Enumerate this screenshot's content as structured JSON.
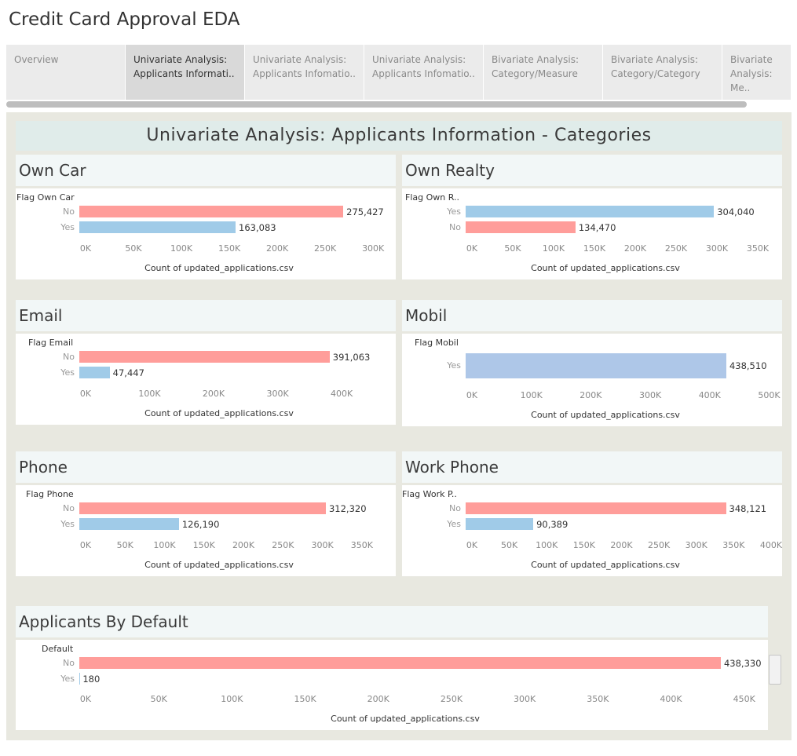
{
  "app_title": "Credit Card Approval EDA",
  "tabs": [
    {
      "label": "Overview",
      "active": false
    },
    {
      "label": "Univariate Analysis: Applicants Informati..",
      "active": true
    },
    {
      "label": "Univariate Analysis: Applicants Infomatio..",
      "active": false
    },
    {
      "label": "Univariate Analysis: Applicants Infomatio..",
      "active": false
    },
    {
      "label": "Bivariate Analysis: Category/Measure",
      "active": false
    },
    {
      "label": "Bivariate Analysis: Category/Category",
      "active": false
    },
    {
      "label": "Bivariate Analysis: Me..",
      "active": false
    }
  ],
  "dashboard_title": "Univariate Analysis: Applicants Information - Categories",
  "colors": {
    "no": "#ff9d9a",
    "yes": "#a0cbe8",
    "mobil": "#aec7e8"
  },
  "chart_data": [
    {
      "type": "bar",
      "title": "Own Car",
      "field_label": "Flag Own Car",
      "categories": [
        "No",
        "Yes"
      ],
      "values": [
        275427,
        163083
      ],
      "value_labels": [
        "275,427",
        "163,083"
      ],
      "xticks": [
        "0K",
        "50K",
        "100K",
        "150K",
        "200K",
        "250K",
        "300K"
      ],
      "xlim": [
        0,
        340000
      ],
      "xlabel": "Count of updated_applications.csv"
    },
    {
      "type": "bar",
      "title": "Own Realty",
      "field_label": "Flag Own R..",
      "categories": [
        "Yes",
        "No"
      ],
      "values": [
        304040,
        134470
      ],
      "value_labels": [
        "304,040",
        "134,470"
      ],
      "xticks": [
        "0K",
        "50K",
        "100K",
        "150K",
        "200K",
        "250K",
        "300K",
        "350K"
      ],
      "xlim": [
        0,
        375000
      ],
      "xlabel": "Count of updated_applications.csv"
    },
    {
      "type": "bar",
      "title": "Email",
      "field_label": "Flag Email",
      "categories": [
        "No",
        "Yes"
      ],
      "values": [
        391063,
        47447
      ],
      "value_labels": [
        "391,063",
        "47,447"
      ],
      "xticks": [
        "0K",
        "100K",
        "200K",
        "300K",
        "400K"
      ],
      "xlim": [
        0,
        460000
      ],
      "xlabel": "Count of updated_applications.csv"
    },
    {
      "type": "bar",
      "title": "Mobil",
      "field_label": "Flag Mobil",
      "categories": [
        "Yes"
      ],
      "values": [
        438510
      ],
      "value_labels": [
        "438,510"
      ],
      "xticks": [
        "0K",
        "100K",
        "200K",
        "300K",
        "400K",
        "500K"
      ],
      "xlim": [
        0,
        535000
      ],
      "xlabel": "Count of updated_applications.csv"
    },
    {
      "type": "bar",
      "title": "Phone",
      "field_label": "Flag Phone",
      "categories": [
        "No",
        "Yes"
      ],
      "values": [
        312320,
        126190
      ],
      "value_labels": [
        "312,320",
        "126,190"
      ],
      "xticks": [
        "0K",
        "50K",
        "100K",
        "150K",
        "200K",
        "250K",
        "300K",
        "350K"
      ],
      "xlim": [
        0,
        378000
      ],
      "xlabel": "Count of updated_applications.csv"
    },
    {
      "type": "bar",
      "title": "Work Phone",
      "field_label": "Flag Work P..",
      "categories": [
        "No",
        "Yes"
      ],
      "values": [
        348121,
        90389
      ],
      "value_labels": [
        "348,121",
        "90,389"
      ],
      "xticks": [
        "0K",
        "50K",
        "100K",
        "150K",
        "200K",
        "250K",
        "300K",
        "350K",
        "400K"
      ],
      "xlim": [
        0,
        420000
      ],
      "xlabel": "Count of updated_applications.csv"
    },
    {
      "type": "bar",
      "title": "Applicants By Default",
      "field_label": "Default",
      "categories": [
        "No",
        "Yes"
      ],
      "values": [
        438330,
        180
      ],
      "value_labels": [
        "438,330",
        "180"
      ],
      "xticks": [
        "0K",
        "50K",
        "100K",
        "150K",
        "200K",
        "250K",
        "300K",
        "350K",
        "400K",
        "450K"
      ],
      "xlim": [
        0,
        470000
      ],
      "xlabel": "Count of updated_applications.csv"
    }
  ]
}
